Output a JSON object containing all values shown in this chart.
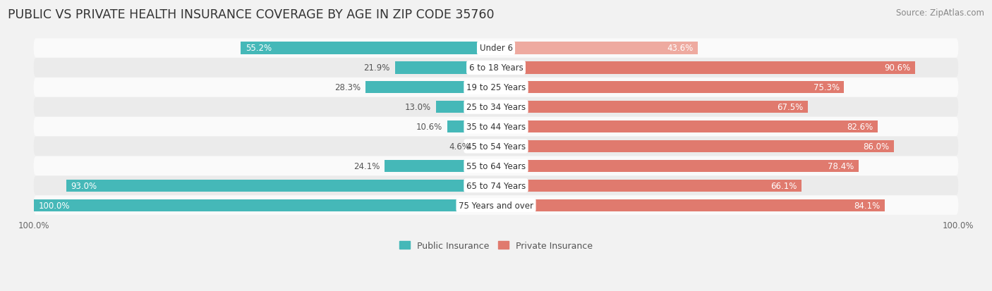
{
  "title": "PUBLIC VS PRIVATE HEALTH INSURANCE COVERAGE BY AGE IN ZIP CODE 35760",
  "source": "Source: ZipAtlas.com",
  "categories": [
    "Under 6",
    "6 to 18 Years",
    "19 to 25 Years",
    "25 to 34 Years",
    "35 to 44 Years",
    "45 to 54 Years",
    "55 to 64 Years",
    "65 to 74 Years",
    "75 Years and over"
  ],
  "public_values": [
    55.2,
    21.9,
    28.3,
    13.0,
    10.6,
    4.6,
    24.1,
    93.0,
    100.0
  ],
  "private_values": [
    43.6,
    90.6,
    75.3,
    67.5,
    82.6,
    86.0,
    78.4,
    66.1,
    84.1
  ],
  "public_color": "#45b8b8",
  "private_color": "#e07a6e",
  "private_color_light": "#eeaaa0",
  "background_color": "#f2f2f2",
  "row_bg_odd": "#fafafa",
  "row_bg_even": "#ebebeb",
  "bar_pill_bg": "#e4e4e4",
  "title_fontsize": 12.5,
  "source_fontsize": 8.5,
  "label_fontsize": 8.5,
  "value_fontsize": 8.5,
  "legend_fontsize": 9,
  "bar_height": 0.62,
  "max_value": 100.0,
  "pub_value_threshold": 30,
  "priv_value_threshold": 20
}
